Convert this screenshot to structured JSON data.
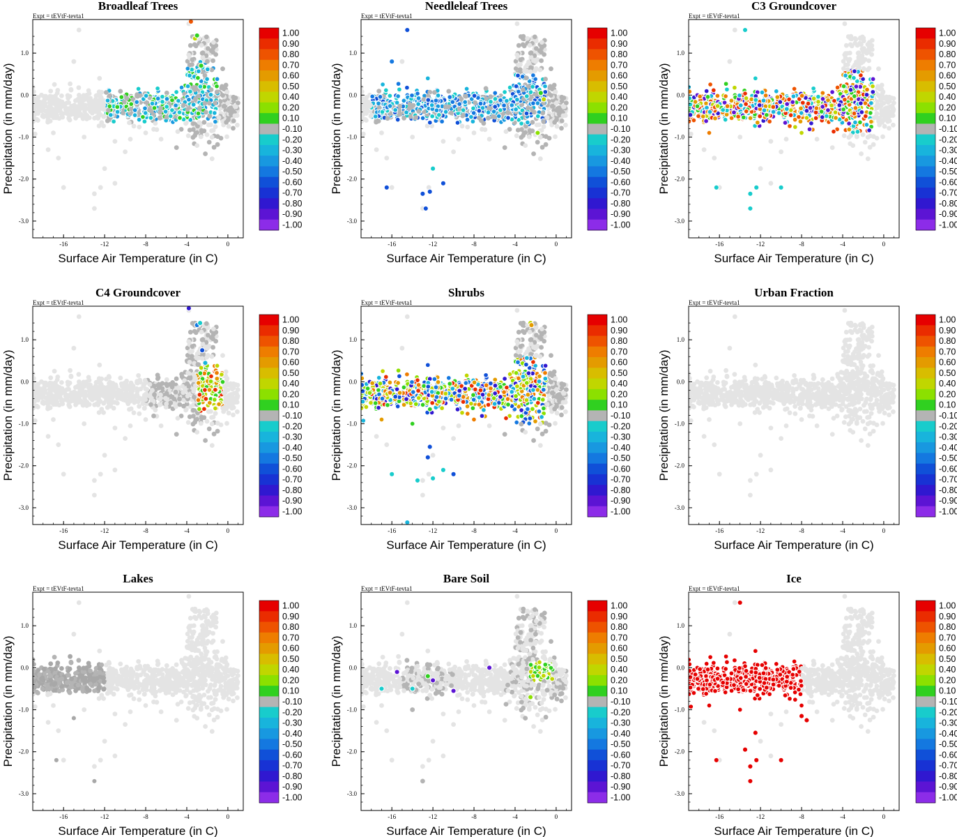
{
  "figure": {
    "xlabel": "Surface Air Temperature (in C)",
    "ylabel": "Precipitation (in mm/day)",
    "expt_label": "Expt = tEVtF-tevta1"
  },
  "colorbar": {
    "labels": [
      "1.00",
      "0.90",
      "0.80",
      "0.70",
      "0.60",
      "0.50",
      "0.40",
      "0.20",
      "0.10",
      "-0.10",
      "-0.20",
      "-0.30",
      "-0.40",
      "-0.50",
      "-0.60",
      "-0.70",
      "-0.80",
      "-0.90",
      "-1.00"
    ],
    "colors": [
      "#e60000",
      "#ea2c00",
      "#ee5300",
      "#ee7d00",
      "#e49b00",
      "#d8bd00",
      "#c0d600",
      "#8ce000",
      "#30d020",
      "#b4b4b4",
      "#18cccc",
      "#18b4dc",
      "#1898e0",
      "#1478e0",
      "#1050d8",
      "#1832d4",
      "#3018d0",
      "#5c14d4",
      "#8c2ce8"
    ]
  },
  "chart_data": [
    {
      "type": "scatter",
      "title": "Broadleaf Trees",
      "xlim": [
        -19,
        1.5
      ],
      "ylim": [
        -3.4,
        1.8
      ],
      "xticks": [
        -16,
        -12,
        -8,
        -4,
        0
      ],
      "yticks": [
        "1.0",
        "0.0",
        "-1.0",
        "-2.0",
        "-3.0"
      ],
      "highlight_region": {
        "x": [
          -12,
          -1
        ],
        "y": [
          -0.65,
          0.8
        ]
      },
      "highlight_colors": [
        "#18cccc",
        "#18b4dc",
        "#1898e0",
        "#b4b4b4",
        "#30d020",
        "#b4b4b4"
      ],
      "extra_points": [
        [
          -3.2,
          1.35,
          "#c0d600"
        ],
        [
          -3.0,
          1.42,
          "#30d020"
        ],
        [
          -3.6,
          1.75,
          "#ee5300"
        ],
        [
          -2.6,
          0.7,
          "#30d020"
        ]
      ]
    },
    {
      "type": "scatter",
      "title": "Needleleaf Trees",
      "xlim": [
        -19,
        1.5
      ],
      "ylim": [
        -3.4,
        1.8
      ],
      "xticks": [
        -16,
        -12,
        -8,
        -4,
        0
      ],
      "yticks": [
        "1.0",
        "0.0",
        "-1.0",
        "-2.0",
        "-3.0"
      ],
      "highlight_region": {
        "x": [
          -18,
          -1
        ],
        "y": [
          -0.7,
          0.5
        ]
      },
      "highlight_colors": [
        "#18cccc",
        "#18b4dc",
        "#1898e0",
        "#1478e0",
        "#1050d8",
        "#b4b4b4",
        "#b4b4b4"
      ],
      "extra_points": [
        [
          -14.5,
          1.55,
          "#1050d8"
        ],
        [
          -16,
          0.8,
          "#1478e0"
        ],
        [
          -13,
          -2.35,
          "#1050d8"
        ],
        [
          -12.3,
          -2.3,
          "#1050d8"
        ],
        [
          -12.7,
          -2.7,
          "#1050d8"
        ],
        [
          -11,
          -2.1,
          "#1050d8"
        ],
        [
          -16.5,
          -2.2,
          "#1050d8"
        ],
        [
          -12,
          -1.75,
          "#18cccc"
        ],
        [
          -1.5,
          0.05,
          "#30d020"
        ],
        [
          -1.2,
          -0.1,
          "#c0d600"
        ],
        [
          -1.8,
          -0.9,
          "#8ce000"
        ]
      ]
    },
    {
      "type": "scatter",
      "title": "C3 Groundcover",
      "xlim": [
        -19,
        1.5
      ],
      "ylim": [
        -3.4,
        1.8
      ],
      "xticks": [
        -16,
        -12,
        -8,
        -4,
        0
      ],
      "yticks": [
        "1.0",
        "0.0",
        "-1.0",
        "-2.0",
        "-3.0"
      ],
      "highlight_region": {
        "x": [
          -19,
          -1
        ],
        "y": [
          -0.9,
          0.6
        ]
      },
      "highlight_colors": [
        "#18cccc",
        "#18b4dc",
        "#5c14d4",
        "#3018d0",
        "#ee5300",
        "#ee7d00",
        "#e49b00",
        "#30d020",
        "#c0d600",
        "#ea2c00"
      ],
      "extra_points": [
        [
          -13,
          -2.35,
          "#18cccc"
        ],
        [
          -12.4,
          -2.2,
          "#18cccc"
        ],
        [
          -13,
          -2.7,
          "#18cccc"
        ],
        [
          -16.3,
          -2.2,
          "#18cccc"
        ],
        [
          -13.5,
          1.55,
          "#18cccc"
        ],
        [
          -10,
          -2.2,
          "#18cccc"
        ]
      ]
    },
    {
      "type": "scatter",
      "title": "C4 Groundcover",
      "xlim": [
        -19,
        1.5
      ],
      "ylim": [
        -3.4,
        1.8
      ],
      "xticks": [
        -16,
        -12,
        -8,
        -4,
        0
      ],
      "yticks": [
        "1.0",
        "0.0",
        "-1.0",
        "-2.0",
        "-3.0"
      ],
      "highlight_region": {
        "x": [
          -3,
          -0.5
        ],
        "y": [
          -0.7,
          0.4
        ]
      },
      "highlight_colors": [
        "#30d020",
        "#8ce000",
        "#c0d600",
        "#e49b00",
        "#ee7d00",
        "#ea2c00"
      ],
      "extra_points": [
        [
          -3.8,
          1.75,
          "#3018d0"
        ],
        [
          -3.0,
          1.35,
          "#1478e0"
        ],
        [
          -2.7,
          1.4,
          "#18cccc"
        ],
        [
          -2.5,
          0.75,
          "#1050d8"
        ],
        [
          -2.2,
          0.45,
          "#18b4dc"
        ]
      ]
    },
    {
      "type": "scatter",
      "title": "Shrubs",
      "xlim": [
        -19,
        1.5
      ],
      "ylim": [
        -3.4,
        1.8
      ],
      "xticks": [
        -16,
        -12,
        -8,
        -4,
        0
      ],
      "yticks": [
        "1.0",
        "0.0",
        "-1.0",
        "-2.0",
        "-3.0"
      ],
      "highlight_region": {
        "x": [
          -19,
          -1
        ],
        "y": [
          -1.0,
          0.6
        ]
      },
      "highlight_colors": [
        "#1050d8",
        "#1478e0",
        "#3018d0",
        "#18b4dc",
        "#c0d600",
        "#e49b00",
        "#30d020",
        "#8ce000",
        "#ee7d00",
        "#ea2c00"
      ],
      "extra_points": [
        [
          -12.3,
          -1.55,
          "#1050d8"
        ],
        [
          -12.5,
          -1.8,
          "#1050d8"
        ],
        [
          -16,
          -2.2,
          "#18cccc"
        ],
        [
          -13.5,
          -2.35,
          "#18cccc"
        ],
        [
          -12,
          -2.3,
          "#18cccc"
        ],
        [
          -11,
          -2.1,
          "#18cccc"
        ],
        [
          -10,
          -2.2,
          "#1050d8"
        ],
        [
          -14.5,
          -3.35,
          "#18b4dc"
        ],
        [
          -2.5,
          1.4,
          "#c0d600"
        ],
        [
          -2.4,
          1.35,
          "#e49b00"
        ]
      ]
    },
    {
      "type": "scatter",
      "title": "Urban Fraction",
      "xlim": [
        -19,
        1.5
      ],
      "ylim": [
        -3.4,
        1.8
      ],
      "xticks": [
        -16,
        -12,
        -8,
        -4,
        0
      ],
      "yticks": [
        "1.0",
        "0.0",
        "-1.0",
        "-2.0",
        "-3.0"
      ],
      "highlight_region": null,
      "highlight_colors": [],
      "extra_points": []
    },
    {
      "type": "scatter",
      "title": "Lakes",
      "xlim": [
        -19,
        1.5
      ],
      "ylim": [
        -3.4,
        1.8
      ],
      "xticks": [
        -16,
        -12,
        -8,
        -4,
        0
      ],
      "yticks": [
        "1.0",
        "0.0",
        "-1.0",
        "-2.0",
        "-3.0"
      ],
      "highlight_region": {
        "x": [
          -19,
          -12
        ],
        "y": [
          -0.6,
          0.3
        ]
      },
      "highlight_colors": [
        "#b4b4b4",
        "#a8a8a8"
      ],
      "extra_points": [
        [
          -16.7,
          -2.2,
          "#a8a8a8"
        ],
        [
          -13,
          -2.7,
          "#a8a8a8"
        ],
        [
          -15,
          -1.2,
          "#a8a8a8"
        ]
      ]
    },
    {
      "type": "scatter",
      "title": "Bare Soil",
      "xlim": [
        -19,
        1.5
      ],
      "ylim": [
        -3.4,
        1.8
      ],
      "xticks": [
        -16,
        -12,
        -8,
        -4,
        0
      ],
      "yticks": [
        "1.0",
        "0.0",
        "-1.0",
        "-2.0",
        "-3.0"
      ],
      "highlight_region": {
        "x": [
          -2.5,
          -0.3
        ],
        "y": [
          -0.3,
          0.15
        ]
      },
      "highlight_colors": [
        "#30d020",
        "#8ce000",
        "#c0d600"
      ],
      "extra_points": [
        [
          -17,
          -0.5,
          "#18cccc"
        ],
        [
          -14,
          -0.5,
          "#18cccc"
        ],
        [
          -15.5,
          -0.1,
          "#5c14d4"
        ],
        [
          -12,
          -0.3,
          "#5c14d4"
        ],
        [
          -10,
          -0.55,
          "#5c14d4"
        ],
        [
          -6.5,
          0,
          "#5c14d4"
        ],
        [
          -2.5,
          -0.7,
          "#8ce000"
        ],
        [
          -12.5,
          -0.2,
          "#30d020"
        ]
      ]
    },
    {
      "type": "scatter",
      "title": "Ice",
      "xlim": [
        -19,
        1.5
      ],
      "ylim": [
        -3.4,
        1.8
      ],
      "xticks": [
        -16,
        -12,
        -8,
        -4,
        0
      ],
      "yticks": [
        "1.0",
        "0.0",
        "-1.0",
        "-2.0",
        "-3.0"
      ],
      "highlight_region": {
        "x": [
          -19,
          -8
        ],
        "y": [
          -1.0,
          0.6
        ]
      },
      "highlight_colors": [
        "#e60000"
      ],
      "extra_points": [
        [
          -14,
          1.55,
          "#e60000"
        ],
        [
          -13,
          -2.35,
          "#e60000"
        ],
        [
          -12.4,
          -2.2,
          "#e60000"
        ],
        [
          -13,
          -2.7,
          "#e60000"
        ],
        [
          -16.3,
          -2.2,
          "#e60000"
        ],
        [
          -10,
          -2.2,
          "#e60000"
        ],
        [
          -12.5,
          -1.55,
          "#e60000"
        ],
        [
          -13.5,
          -1.95,
          "#e60000"
        ],
        [
          -7.5,
          -1.25,
          "#e60000"
        ],
        [
          -8,
          -1.15,
          "#e60000"
        ]
      ]
    }
  ]
}
